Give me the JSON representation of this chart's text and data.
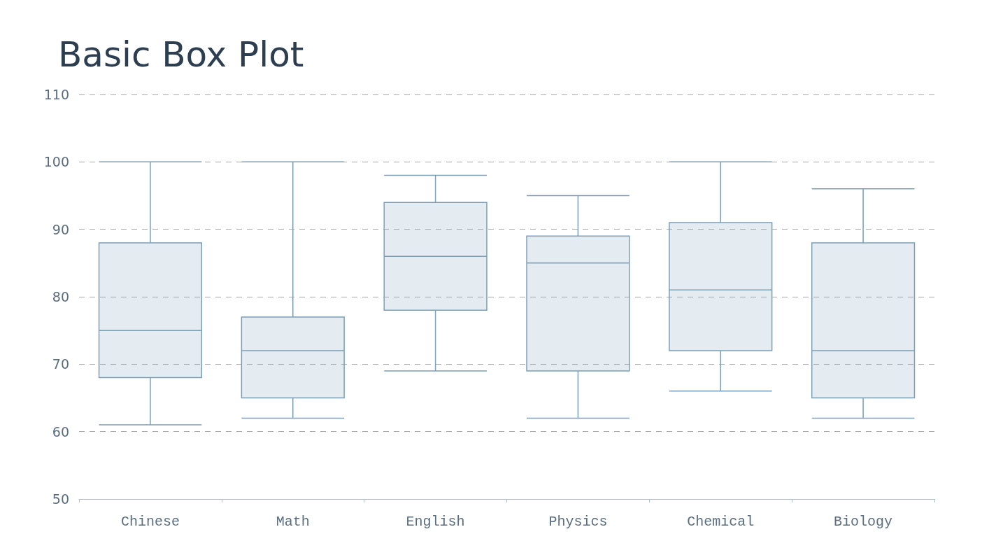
{
  "chart_data": {
    "type": "box",
    "title": "Basic Box Plot",
    "categories": [
      "Chinese",
      "Math",
      "English",
      "Physics",
      "Chemical",
      "Biology"
    ],
    "color": "#7b9fb7",
    "boxes": [
      {
        "low": 61,
        "q1": 68,
        "median": 75,
        "q3": 88,
        "high": 100
      },
      {
        "low": 62,
        "q1": 65,
        "median": 72,
        "q3": 77,
        "high": 100
      },
      {
        "low": 69,
        "q1": 78,
        "median": 86,
        "q3": 94,
        "high": 98
      },
      {
        "low": 62,
        "q1": 69,
        "median": 85,
        "q3": 89,
        "high": 95
      },
      {
        "low": 66,
        "q1": 72,
        "median": 81,
        "q3": 91,
        "high": 100
      },
      {
        "low": 62,
        "q1": 65,
        "median": 72,
        "q3": 88,
        "high": 96
      }
    ],
    "ylim": [
      50,
      110
    ],
    "yticks": [
      50,
      60,
      70,
      80,
      90,
      100,
      110
    ],
    "grid": "y"
  }
}
